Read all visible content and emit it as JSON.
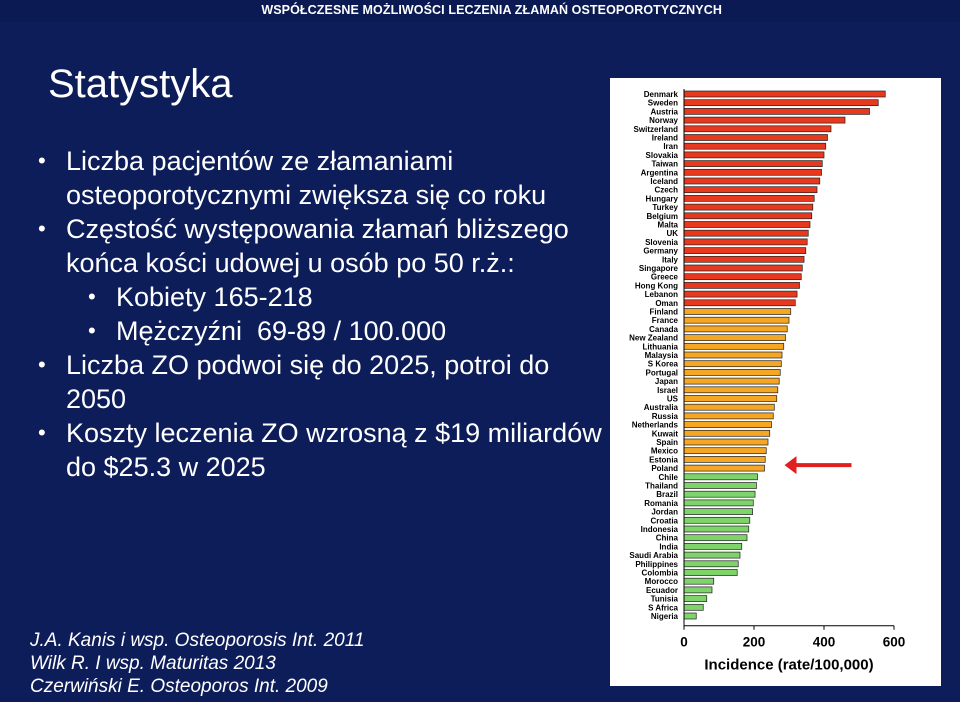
{
  "header": {
    "text": "WSPÓŁCZESNE MOŻLIWOŚCI LECZENIA ZŁAMAŃ OSTEOPOROTYCZNYCH"
  },
  "slide": {
    "title": "Statystyka",
    "bullets": [
      {
        "level": 1,
        "text": "Liczba pacjentów ze złamaniami osteoporotycznymi zwiększa się co roku"
      },
      {
        "level": 1,
        "text": "Częstość występowania złamań bliższego końca kości udowej u osób po 50 r.ż.:"
      },
      {
        "level": 2,
        "text": "Kobiety 165-218"
      },
      {
        "level": 2,
        "text": "Mężczyźni  69-89 / 100.000"
      },
      {
        "level": 1,
        "text": "Liczba ZO podwoi się do 2025, potroi do 2050"
      },
      {
        "level": 1,
        "text": "Koszty leczenia ZO wzrosną z $19 miliardów do $25.3 w 2025"
      }
    ],
    "references": [
      "J.A. Kanis i wsp. Osteoporosis Int. 2011",
      "Wilk R. I wsp. Maturitas 2013",
      "Czerwiński E. Osteoporos Int. 2009"
    ]
  },
  "chart_data": {
    "type": "bar",
    "orientation": "horizontal",
    "xlabel": "Incidence (rate/100,000)",
    "xticks": [
      0,
      200,
      400,
      600
    ],
    "xlim": [
      0,
      600
    ],
    "highlight_category": "Poland",
    "colors": {
      "high": "#e8391f",
      "medium": "#f5a623",
      "low": "#7ed46a",
      "highlight_arrow": "#e02020"
    },
    "categories": [
      "Denmark",
      "Sweden",
      "Austria",
      "Norway",
      "Switzerland",
      "Ireland",
      "Iran",
      "Slovakia",
      "Taiwan",
      "Argentina",
      "Iceland",
      "Czech",
      "Hungary",
      "Turkey",
      "Belgium",
      "Malta",
      "UK",
      "Slovenia",
      "Germany",
      "Italy",
      "Singapore",
      "Greece",
      "Hong Kong",
      "Lebanon",
      "Oman",
      "Finland",
      "France",
      "Canada",
      "New Zealand",
      "Lithuania",
      "Malaysia",
      "S Korea",
      "Portugal",
      "Japan",
      "Israel",
      "US",
      "Australia",
      "Russia",
      "Netherlands",
      "Kuwait",
      "Spain",
      "Mexico",
      "Estonia",
      "Poland",
      "Chile",
      "Thailand",
      "Brazil",
      "Romania",
      "Jordan",
      "Croatia",
      "Indonesia",
      "China",
      "India",
      "Saudi Arabia",
      "Philippines",
      "Colombia",
      "Morocco",
      "Ecuador",
      "Tunisia",
      "S Africa",
      "Nigeria"
    ],
    "values": [
      575,
      555,
      530,
      460,
      420,
      410,
      405,
      400,
      395,
      393,
      388,
      380,
      372,
      368,
      365,
      360,
      355,
      352,
      348,
      343,
      338,
      335,
      330,
      323,
      318,
      305,
      300,
      295,
      290,
      285,
      280,
      278,
      275,
      272,
      268,
      265,
      258,
      255,
      250,
      245,
      240,
      235,
      232,
      230,
      210,
      207,
      203,
      198,
      196,
      188,
      185,
      180,
      165,
      160,
      155,
      152,
      85,
      80,
      65,
      55,
      35
    ],
    "color_groups": [
      "high",
      "high",
      "high",
      "high",
      "high",
      "high",
      "high",
      "high",
      "high",
      "high",
      "high",
      "high",
      "high",
      "high",
      "high",
      "high",
      "high",
      "high",
      "high",
      "high",
      "high",
      "high",
      "high",
      "high",
      "high",
      "medium",
      "medium",
      "medium",
      "medium",
      "medium",
      "medium",
      "medium",
      "medium",
      "medium",
      "medium",
      "medium",
      "medium",
      "medium",
      "medium",
      "medium",
      "medium",
      "medium",
      "medium",
      "medium",
      "low",
      "low",
      "low",
      "low",
      "low",
      "low",
      "low",
      "low",
      "low",
      "low",
      "low",
      "low",
      "low",
      "low",
      "low",
      "low",
      "low"
    ]
  }
}
